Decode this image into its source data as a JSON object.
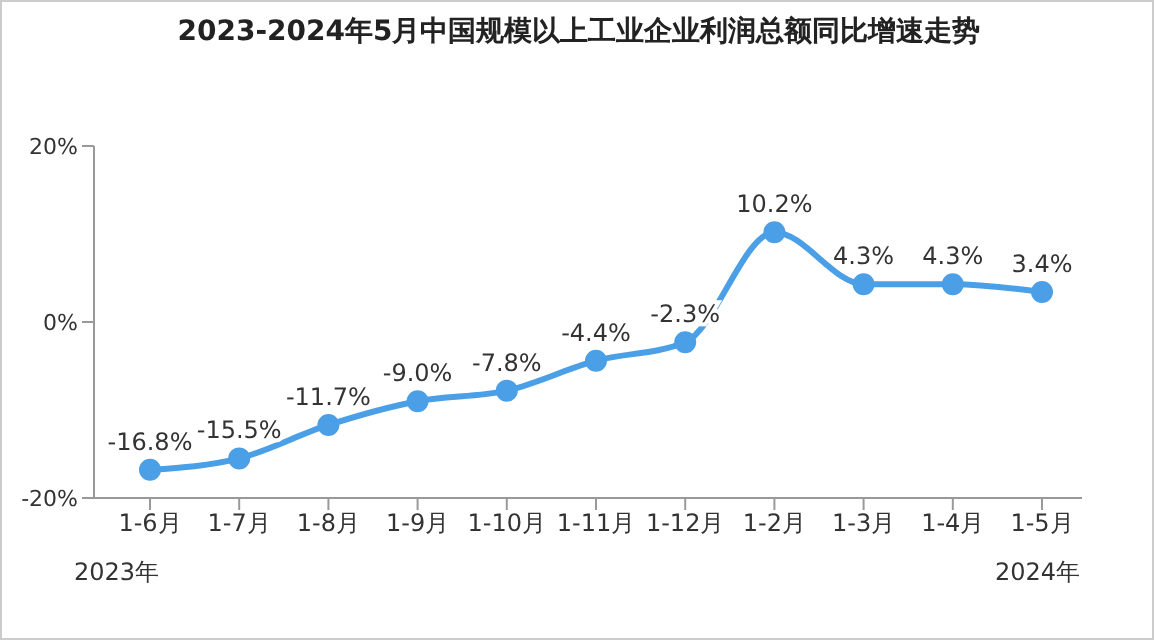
{
  "chart_data": {
    "type": "line",
    "title": "2023-2024年5月中国规模以上工业企业利润总额同比增速走势",
    "categories": [
      "1-6月",
      "1-7月",
      "1-8月",
      "1-9月",
      "1-10月",
      "1-11月",
      "1-12月",
      "1-2月",
      "1-3月",
      "1-4月",
      "1-5月"
    ],
    "series": [
      {
        "color": "#4a9fe6",
        "values": [
          -16.8,
          -15.5,
          -11.7,
          -9.0,
          -7.8,
          -4.4,
          -2.3,
          10.2,
          4.3,
          4.3,
          3.4
        ],
        "value_labels": [
          "-16.8%",
          "-15.5%",
          "-11.7%",
          "-9.0%",
          "-7.8%",
          "-4.4%",
          "-2.3%",
          "10.2%",
          "4.3%",
          "4.3%",
          "3.4%"
        ]
      }
    ],
    "ylim": [
      -20,
      20
    ],
    "yticks": [
      {
        "value": -20,
        "label": "-20%"
      },
      {
        "value": 0,
        "label": "0%"
      },
      {
        "value": 20,
        "label": "20%"
      }
    ],
    "marker": "circle",
    "line_style": "solid",
    "annotations": [
      "2023年",
      "2024年"
    ]
  }
}
